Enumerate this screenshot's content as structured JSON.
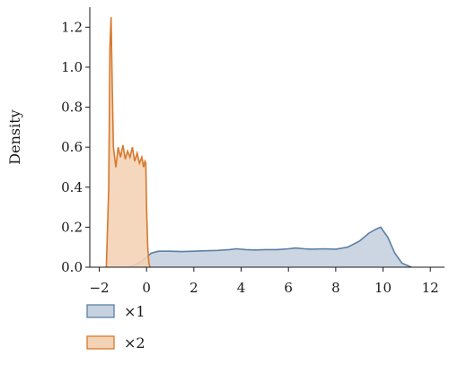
{
  "chart_data": {
    "type": "area",
    "title": "",
    "xlabel": "",
    "ylabel": "Density",
    "xlim": [
      -2.4,
      12.6
    ],
    "ylim": [
      0,
      1.3
    ],
    "x_ticks": [
      -2,
      0,
      2,
      4,
      6,
      8,
      10,
      12
    ],
    "x_tick_labels": [
      "−2",
      "0",
      "2",
      "4",
      "6",
      "8",
      "10",
      "12"
    ],
    "y_ticks": [
      0.0,
      0.2,
      0.4,
      0.6,
      0.8,
      1.0,
      1.2
    ],
    "y_tick_labels": [
      "0.0",
      "0.2",
      "0.4",
      "0.6",
      "0.8",
      "1.0",
      "1.2"
    ],
    "grid": false,
    "legend_position": "bottom-left",
    "series": [
      {
        "name": "×1",
        "color": "#5a7fa6",
        "fill": "#c6d2df",
        "x": [
          -0.8,
          -0.5,
          -0.2,
          0.0,
          0.2,
          0.5,
          1.0,
          1.5,
          2.0,
          2.5,
          3.0,
          3.5,
          3.8,
          4.2,
          4.6,
          5.0,
          5.5,
          6.0,
          6.3,
          6.7,
          7.0,
          7.5,
          8.0,
          8.5,
          9.0,
          9.4,
          9.7,
          9.9,
          10.2,
          10.5,
          10.8,
          11.2
        ],
        "values": [
          0.0,
          0.01,
          0.03,
          0.05,
          0.07,
          0.08,
          0.08,
          0.078,
          0.08,
          0.082,
          0.084,
          0.088,
          0.092,
          0.088,
          0.086,
          0.088,
          0.088,
          0.092,
          0.096,
          0.092,
          0.09,
          0.092,
          0.09,
          0.1,
          0.13,
          0.17,
          0.19,
          0.2,
          0.15,
          0.07,
          0.02,
          0.0
        ]
      },
      {
        "name": "×2",
        "color": "#d9782d",
        "fill": "#f3d3b5",
        "x": [
          -1.7,
          -1.6,
          -1.55,
          -1.5,
          -1.45,
          -1.4,
          -1.3,
          -1.2,
          -1.1,
          -1.0,
          -0.9,
          -0.8,
          -0.7,
          -0.6,
          -0.5,
          -0.4,
          -0.3,
          -0.2,
          -0.12,
          -0.07,
          -0.03,
          0.0,
          0.05,
          0.1,
          0.15
        ],
        "values": [
          0.0,
          0.4,
          1.1,
          1.25,
          0.9,
          0.6,
          0.5,
          0.6,
          0.55,
          0.61,
          0.54,
          0.58,
          0.55,
          0.6,
          0.53,
          0.57,
          0.52,
          0.55,
          0.5,
          0.53,
          0.52,
          0.3,
          0.1,
          0.02,
          0.0
        ]
      }
    ]
  }
}
